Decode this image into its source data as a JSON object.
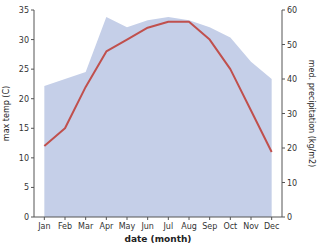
{
  "chart_data": {
    "type": "line",
    "categories": [
      "Jan",
      "Feb",
      "Mar",
      "Apr",
      "May",
      "Jun",
      "Jul",
      "Aug",
      "Sep",
      "Oct",
      "Nov",
      "Dec"
    ],
    "xlabel": "date (month)",
    "ylabel": "max temp (C)",
    "y2label": "med. precipitation (kg/m2)",
    "ylim": [
      0,
      35
    ],
    "yticks": [
      0,
      5,
      10,
      15,
      20,
      25,
      30,
      35
    ],
    "y2lim": [
      0,
      60
    ],
    "y2ticks": [
      0,
      10,
      20,
      30,
      40,
      50,
      60
    ],
    "grid": false,
    "series": [
      {
        "type": "area",
        "color": "#c5cfe8",
        "axis": "y2",
        "values": [
          38,
          40,
          42,
          58,
          55,
          57,
          58,
          57,
          55,
          52,
          45,
          40
        ]
      },
      {
        "type": "line",
        "color": "#c0504d",
        "values": [
          12,
          15,
          22,
          28,
          30,
          32,
          33,
          33,
          30,
          25,
          18,
          11
        ]
      }
    ]
  }
}
